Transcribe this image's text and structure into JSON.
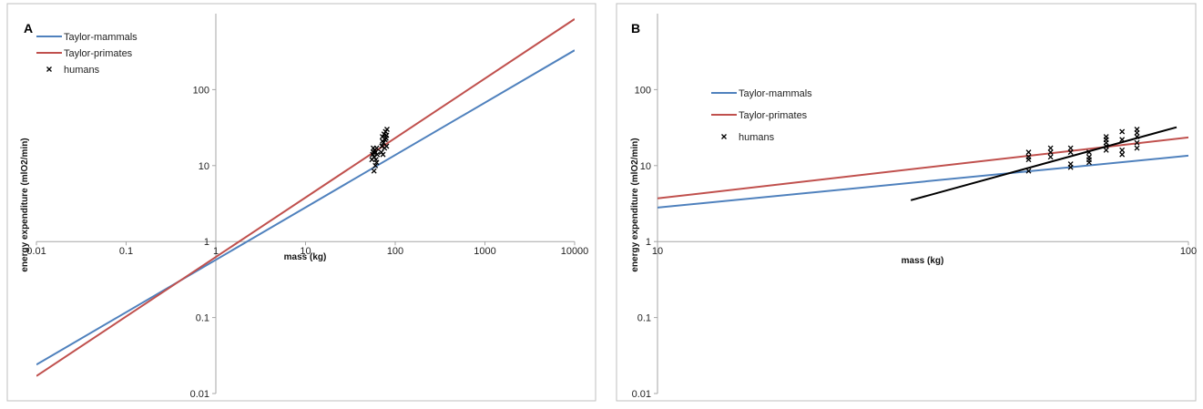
{
  "chart_data": [
    {
      "type": "line",
      "panel_label": "A",
      "xlabel": "mass (kg)",
      "ylabel": "energy expenditure (mlO2/min)",
      "x_scale": "log",
      "y_scale": "log",
      "xlim": [
        0.01,
        10000
      ],
      "ylim": [
        0.01,
        1000
      ],
      "x_ticks": [
        {
          "value": 0.01,
          "label": "0.01"
        },
        {
          "value": 0.1,
          "label": "0.1"
        },
        {
          "value": 1,
          "label": "1"
        },
        {
          "value": 10,
          "label": "10"
        },
        {
          "value": 100,
          "label": "100"
        },
        {
          "value": 1000,
          "label": "1000"
        },
        {
          "value": 10000,
          "label": "10000"
        }
      ],
      "y_ticks": [
        {
          "value": 0.01,
          "label": "0.01"
        },
        {
          "value": 0.1,
          "label": "0.1"
        },
        {
          "value": 1,
          "label": "1"
        },
        {
          "value": 10,
          "label": "10"
        },
        {
          "value": 100,
          "label": "100"
        }
      ],
      "legend": {
        "placement": "top-left"
      },
      "colors": {
        "mammals": "#4f81bd",
        "primates": "#c0504d",
        "humans": "#000000"
      },
      "series": [
        {
          "name": "Taylor-mammals",
          "kind": "line",
          "color": "#4f81bd",
          "x": [
            0.01,
            10000
          ],
          "y": [
            0.024,
            330
          ]
        },
        {
          "name": "Taylor-primates",
          "kind": "line",
          "color": "#c0504d",
          "x": [
            0.01,
            10000
          ],
          "y": [
            0.017,
            850
          ]
        },
        {
          "name": "humans",
          "kind": "scatter",
          "color": "#000000",
          "x": [
            55,
            56,
            57,
            57,
            58,
            58,
            59,
            60,
            60,
            61,
            62,
            62,
            63,
            70,
            71,
            72,
            72,
            73,
            74,
            75,
            76,
            77,
            78,
            79,
            80,
            80,
            81
          ],
          "y": [
            12,
            14,
            15,
            17,
            8.5,
            13,
            16,
            10,
            15,
            12,
            11,
            17,
            14,
            15,
            18,
            21,
            24,
            14,
            20,
            26,
            17,
            22,
            28,
            23,
            18,
            25,
            30
          ]
        }
      ]
    },
    {
      "type": "line",
      "panel_label": "B",
      "xlabel": "mass (kg)",
      "ylabel": "energy expenditure (mlO2/min)",
      "x_scale": "log",
      "y_scale": "log",
      "xlim": [
        10,
        100
      ],
      "ylim": [
        0.01,
        1000
      ],
      "x_ticks": [
        {
          "value": 10,
          "label": "10"
        },
        {
          "value": 100,
          "label": "100"
        }
      ],
      "y_ticks": [
        {
          "value": 0.01,
          "label": "0.01"
        },
        {
          "value": 0.1,
          "label": "0.1"
        },
        {
          "value": 1,
          "label": "1"
        },
        {
          "value": 10,
          "label": "10"
        },
        {
          "value": 100,
          "label": "100"
        }
      ],
      "legend": {
        "placement": "top-left"
      },
      "colors": {
        "mammals": "#4f81bd",
        "primates": "#c0504d",
        "humans": "#000000",
        "fit": "#000000"
      },
      "series": [
        {
          "name": "Taylor-mammals",
          "kind": "line",
          "color": "#4f81bd",
          "x": [
            10,
            100
          ],
          "y": [
            2.8,
            13.5
          ]
        },
        {
          "name": "Taylor-primates",
          "kind": "line",
          "color": "#c0504d",
          "x": [
            10,
            100
          ],
          "y": [
            3.7,
            23.5
          ]
        },
        {
          "name": "humans",
          "kind": "scatter",
          "color": "#000000",
          "x": [
            50,
            50,
            50,
            50,
            55,
            55,
            55,
            60,
            60,
            60,
            60,
            65,
            65,
            65,
            65,
            70,
            70,
            70,
            70,
            70,
            75,
            75,
            75,
            75,
            80,
            80,
            80,
            80,
            80
          ],
          "y": [
            8.5,
            12,
            13,
            15,
            13,
            15,
            17,
            9.5,
            10.5,
            15,
            17,
            11,
            12,
            13,
            15,
            16,
            18,
            20,
            22,
            24,
            14,
            16,
            22,
            28,
            17,
            20,
            24,
            27,
            30
          ]
        },
        {
          "name": "",
          "kind": "line",
          "color": "#000000",
          "x": [
            30,
            95
          ],
          "y": [
            3.5,
            32
          ]
        }
      ]
    }
  ]
}
